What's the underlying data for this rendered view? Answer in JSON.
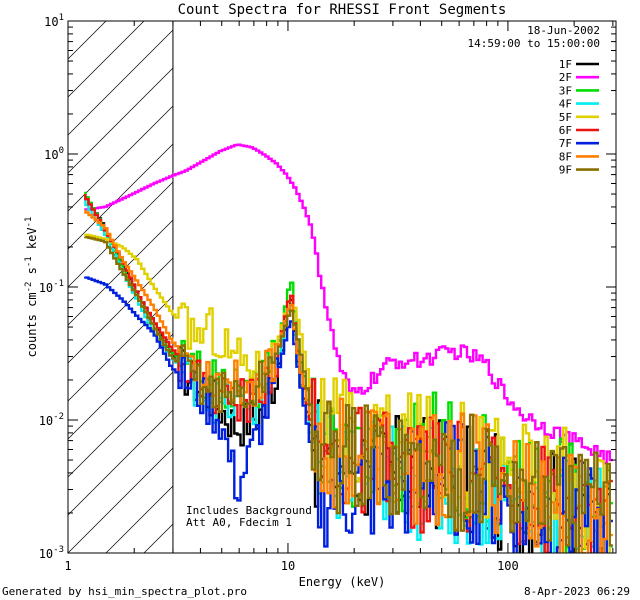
{
  "chart_data": {
    "type": "line",
    "title": "Count Spectra for RHESSI Front Segments",
    "xlabel": "Energy (keV)",
    "ylabel_base": "counts cm",
    "ylabel_exp1": "-2",
    "ylabel_mid": " s",
    "ylabel_exp2": "-1",
    "ylabel_end": " keV",
    "ylabel_exp3": "-1",
    "xscale": "log",
    "yscale": "log",
    "xlim": [
      1,
      310
    ],
    "ylim": [
      0.001,
      10
    ],
    "x_ticks": [
      {
        "value": 1,
        "label": "1"
      },
      {
        "value": 10,
        "label": "10"
      },
      {
        "value": 100,
        "label": "100"
      }
    ],
    "y_ticks": [
      {
        "value": 0.001,
        "base": "10",
        "exp": "-3"
      },
      {
        "value": 0.01,
        "base": "10",
        "exp": "-2"
      },
      {
        "value": 0.1,
        "base": "10",
        "exp": "-1"
      },
      {
        "value": 1,
        "base": "10",
        "exp": "0"
      },
      {
        "value": 10,
        "base": "10",
        "exp": "1"
      }
    ],
    "hatch_region": [
      1,
      3
    ],
    "date": "18-Jun-2002",
    "time_range": "14:59:00 to 15:00:00",
    "annotations": [
      "Includes Background",
      "Att A0, Fdecim 1"
    ],
    "series": [
      {
        "name": "1F",
        "color": "#000000",
        "points": [
          [
            1.2,
            0.5
          ],
          [
            1.5,
            0.28
          ],
          [
            1.8,
            0.15
          ],
          [
            2.1,
            0.09
          ],
          [
            2.5,
            0.055
          ],
          [
            2.9,
            0.035
          ],
          [
            3.5,
            0.022
          ],
          [
            4.5,
            0.015
          ],
          [
            6,
            0.009
          ],
          [
            8,
            0.012
          ],
          [
            9.5,
            0.03
          ],
          [
            10.5,
            0.09
          ],
          [
            11.5,
            0.02
          ],
          [
            14,
            0.005
          ],
          [
            20,
            0.005
          ],
          [
            30,
            0.004
          ],
          [
            50,
            0.004
          ],
          [
            80,
            0.003
          ],
          [
            120,
            0.0025
          ],
          [
            200,
            0.002
          ],
          [
            300,
            0.0015
          ]
        ]
      },
      {
        "name": "2F",
        "color": "#ff00ff",
        "points": [
          [
            1.2,
            0.38
          ],
          [
            1.5,
            0.4
          ],
          [
            2,
            0.5
          ],
          [
            2.5,
            0.6
          ],
          [
            3,
            0.68
          ],
          [
            3.5,
            0.75
          ],
          [
            4,
            0.85
          ],
          [
            5,
            1.05
          ],
          [
            6,
            1.18
          ],
          [
            7,
            1.12
          ],
          [
            8,
            0.98
          ],
          [
            9,
            0.85
          ],
          [
            10,
            0.7
          ],
          [
            11,
            0.55
          ],
          [
            12,
            0.4
          ],
          [
            13,
            0.28
          ],
          [
            14,
            0.15
          ],
          [
            15,
            0.08
          ],
          [
            16,
            0.045
          ],
          [
            18,
            0.022
          ],
          [
            20,
            0.015
          ],
          [
            23,
            0.018
          ],
          [
            26,
            0.022
          ],
          [
            30,
            0.027
          ],
          [
            35,
            0.028
          ],
          [
            40,
            0.028
          ],
          [
            50,
            0.031
          ],
          [
            60,
            0.033
          ],
          [
            70,
            0.03
          ],
          [
            80,
            0.027
          ],
          [
            90,
            0.02
          ],
          [
            100,
            0.015
          ],
          [
            120,
            0.011
          ],
          [
            150,
            0.009
          ],
          [
            200,
            0.007
          ],
          [
            250,
            0.006
          ],
          [
            300,
            0.005
          ]
        ]
      },
      {
        "name": "3F",
        "color": "#00dd00",
        "points": [
          [
            1.2,
            0.52
          ],
          [
            1.5,
            0.27
          ],
          [
            1.8,
            0.14
          ],
          [
            2.1,
            0.085
          ],
          [
            2.5,
            0.05
          ],
          [
            3,
            0.033
          ],
          [
            4,
            0.022
          ],
          [
            5,
            0.018
          ],
          [
            7,
            0.016
          ],
          [
            9,
            0.03
          ],
          [
            10.5,
            0.12
          ],
          [
            11.5,
            0.03
          ],
          [
            14,
            0.007
          ],
          [
            20,
            0.006
          ],
          [
            30,
            0.005
          ],
          [
            50,
            0.006
          ],
          [
            80,
            0.004
          ],
          [
            120,
            0.003
          ],
          [
            200,
            0.0025
          ],
          [
            300,
            0.002
          ]
        ]
      },
      {
        "name": "4F",
        "color": "#00eeee",
        "points": [
          [
            1.2,
            0.45
          ],
          [
            1.5,
            0.25
          ],
          [
            1.8,
            0.13
          ],
          [
            2.1,
            0.08
          ],
          [
            2.5,
            0.045
          ],
          [
            3,
            0.03
          ],
          [
            4,
            0.018
          ],
          [
            5,
            0.013
          ],
          [
            7,
            0.012
          ],
          [
            9,
            0.025
          ],
          [
            10.5,
            0.08
          ],
          [
            11.5,
            0.02
          ],
          [
            14,
            0.004
          ],
          [
            20,
            0.004
          ],
          [
            30,
            0.004
          ],
          [
            50,
            0.003
          ],
          [
            80,
            0.003
          ],
          [
            120,
            0.002
          ],
          [
            200,
            0.002
          ],
          [
            300,
            0.0015
          ]
        ]
      },
      {
        "name": "5F",
        "color": "#e0d000",
        "points": [
          [
            1.2,
            0.25
          ],
          [
            1.5,
            0.23
          ],
          [
            1.8,
            0.2
          ],
          [
            2.1,
            0.16
          ],
          [
            2.5,
            0.1
          ],
          [
            3,
            0.065
          ],
          [
            3.5,
            0.05
          ],
          [
            4,
            0.045
          ],
          [
            4.5,
            0.05
          ],
          [
            5,
            0.04
          ],
          [
            6,
            0.03
          ],
          [
            7,
            0.028
          ],
          [
            8,
            0.02
          ],
          [
            9,
            0.035
          ],
          [
            10.5,
            0.09
          ],
          [
            11.5,
            0.05
          ],
          [
            14,
            0.008
          ],
          [
            20,
            0.007
          ],
          [
            30,
            0.006
          ],
          [
            50,
            0.006
          ],
          [
            80,
            0.005
          ],
          [
            120,
            0.004
          ],
          [
            200,
            0.003
          ],
          [
            300,
            0.002
          ]
        ]
      },
      {
        "name": "6F",
        "color": "#ee1111",
        "points": [
          [
            1.2,
            0.5
          ],
          [
            1.5,
            0.27
          ],
          [
            1.8,
            0.16
          ],
          [
            2.1,
            0.09
          ],
          [
            2.5,
            0.055
          ],
          [
            3,
            0.035
          ],
          [
            4,
            0.02
          ],
          [
            5,
            0.015
          ],
          [
            7,
            0.014
          ],
          [
            9,
            0.028
          ],
          [
            10.5,
            0.095
          ],
          [
            11.5,
            0.025
          ],
          [
            14,
            0.005
          ],
          [
            20,
            0.005
          ],
          [
            30,
            0.004
          ],
          [
            50,
            0.004
          ],
          [
            80,
            0.003
          ],
          [
            120,
            0.003
          ],
          [
            200,
            0.002
          ],
          [
            300,
            0.0015
          ]
        ]
      },
      {
        "name": "7F",
        "color": "#0020dd",
        "points": [
          [
            1.2,
            0.12
          ],
          [
            1.5,
            0.105
          ],
          [
            1.8,
            0.08
          ],
          [
            2.1,
            0.06
          ],
          [
            2.5,
            0.045
          ],
          [
            3,
            0.025
          ],
          [
            4,
            0.016
          ],
          [
            5,
            0.01
          ],
          [
            6,
            0.003
          ],
          [
            7,
            0.006
          ],
          [
            9,
            0.02
          ],
          [
            10.5,
            0.06
          ],
          [
            11.5,
            0.02
          ],
          [
            14,
            0.003
          ],
          [
            20,
            0.003
          ],
          [
            30,
            0.003
          ],
          [
            50,
            0.004
          ],
          [
            80,
            0.003
          ],
          [
            120,
            0.002
          ],
          [
            200,
            0.002
          ],
          [
            300,
            0.0012
          ]
        ]
      },
      {
        "name": "8F",
        "color": "#ff8000",
        "points": [
          [
            1.2,
            0.38
          ],
          [
            1.5,
            0.28
          ],
          [
            1.8,
            0.16
          ],
          [
            2.1,
            0.11
          ],
          [
            2.5,
            0.07
          ],
          [
            3,
            0.04
          ],
          [
            3.5,
            0.03
          ],
          [
            4,
            0.025
          ],
          [
            5,
            0.02
          ],
          [
            7,
            0.018
          ],
          [
            9,
            0.03
          ],
          [
            10.5,
            0.08
          ],
          [
            11.5,
            0.025
          ],
          [
            14,
            0.006
          ],
          [
            20,
            0.006
          ],
          [
            30,
            0.005
          ],
          [
            50,
            0.004
          ],
          [
            80,
            0.004
          ],
          [
            120,
            0.003
          ],
          [
            200,
            0.002
          ],
          [
            300,
            0.0015
          ]
        ]
      },
      {
        "name": "9F",
        "color": "#887000",
        "points": [
          [
            1.2,
            0.24
          ],
          [
            1.5,
            0.22
          ],
          [
            1.8,
            0.13
          ],
          [
            2.1,
            0.085
          ],
          [
            2.5,
            0.05
          ],
          [
            3,
            0.03
          ],
          [
            4,
            0.02
          ],
          [
            5,
            0.016
          ],
          [
            7,
            0.015
          ],
          [
            9,
            0.03
          ],
          [
            10.5,
            0.07
          ],
          [
            11.5,
            0.035
          ],
          [
            14,
            0.006
          ],
          [
            20,
            0.005
          ],
          [
            30,
            0.005
          ],
          [
            50,
            0.004
          ],
          [
            80,
            0.004
          ],
          [
            120,
            0.003
          ],
          [
            200,
            0.0025
          ],
          [
            300,
            0.002
          ]
        ]
      }
    ]
  },
  "footer": {
    "generated_by": "Generated by hsi_min_spectra_plot.pro",
    "date_stamp": "8-Apr-2023 06:29"
  }
}
